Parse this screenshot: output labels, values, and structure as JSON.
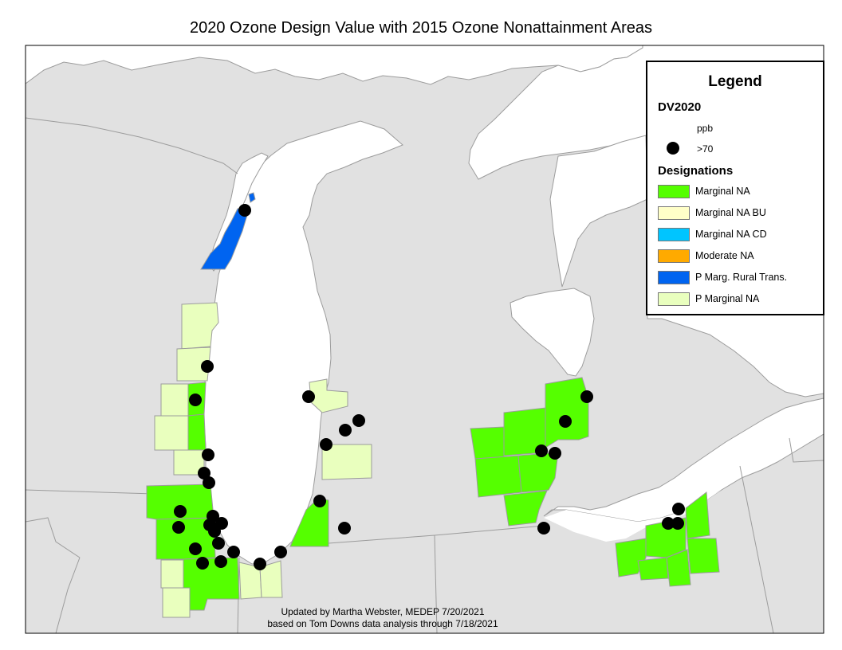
{
  "title": "2020 Ozone Design Value with 2015 Ozone Nonattainment Areas",
  "legend": {
    "title": "Legend",
    "dv_heading": "DV2020",
    "dv_unit": "ppb",
    "dv_symbol_label": ">70",
    "designations_heading": "Designations",
    "items": [
      {
        "label": "Marginal NA",
        "color": "#55ff00"
      },
      {
        "label": "Marginal NA BU",
        "color": "#ffffc8"
      },
      {
        "label": "Marginal NA CD",
        "color": "#00c5ff"
      },
      {
        "label": "Moderate NA",
        "color": "#ffaa00"
      },
      {
        "label": "P Marg. Rural Trans.",
        "color": "#0064f0"
      },
      {
        "label": "P Marginal NA",
        "color": "#e9ffbe"
      }
    ]
  },
  "credits": {
    "line1": "Updated by Martha Webster, MEDEP 7/20/2021",
    "line2": "based on Tom Downs data analysis through 7/18/2021"
  },
  "colors": {
    "land": "#e1e1e1",
    "water": "#ffffff",
    "boundary": "#9c9c9c",
    "monitor": "#000000"
  }
}
